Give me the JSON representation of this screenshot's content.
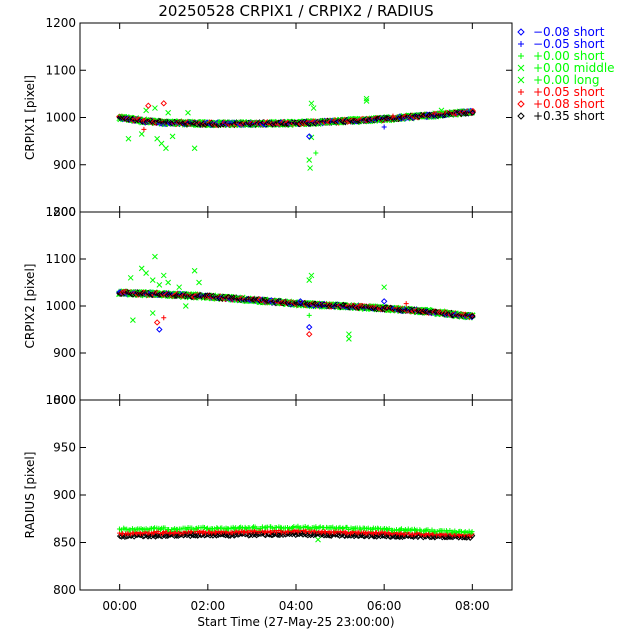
{
  "chart_data": {
    "type": "scatter",
    "title": "20250528 CRPIX1 / CRPIX2 / RADIUS",
    "xlabel": "Start Time (27-May-25 23:00:00)",
    "x_ticks": [
      "00:00",
      "02:00",
      "04:00",
      "06:00",
      "08:00"
    ],
    "x_tick_hours": [
      0,
      2,
      4,
      6,
      8
    ],
    "xlim_hours": [
      -0.9,
      8.9
    ],
    "legend": [
      {
        "label": "−0.08 short",
        "color": "#0000ff",
        "symbol": "diamond"
      },
      {
        "label": "−0.05 short",
        "color": "#0000ff",
        "symbol": "plus"
      },
      {
        "label": "+0.00 short",
        "color": "#00ff00",
        "symbol": "plus"
      },
      {
        "label": "+0.00 middle",
        "color": "#00ff00",
        "symbol": "cross"
      },
      {
        "label": "+0.00 long",
        "color": "#00ff00",
        "symbol": "cross"
      },
      {
        "label": "+0.05 short",
        "color": "#ff0000",
        "symbol": "plus"
      },
      {
        "label": "+0.08 short",
        "color": "#ff0000",
        "symbol": "diamond"
      },
      {
        "label": "+0.35 short",
        "color": "#000000",
        "symbol": "diamond"
      }
    ],
    "panels": [
      {
        "name": "crpix1",
        "ylabel": "CRPIX1 [pixel]",
        "ylim": [
          800,
          1200
        ],
        "y_ticks": [
          800,
          900,
          1000,
          1100,
          1200
        ],
        "trend": [
          [
            0,
            1000
          ],
          [
            0.5,
            993
          ],
          [
            1,
            989
          ],
          [
            2,
            987
          ],
          [
            3,
            987
          ],
          [
            4,
            988
          ],
          [
            5,
            992
          ],
          [
            6,
            997
          ],
          [
            7,
            1004
          ],
          [
            8,
            1012
          ]
        ],
        "outliers": [
          {
            "t": 0.2,
            "v": 955,
            "s": 3
          },
          {
            "t": 0.5,
            "v": 965,
            "s": 3
          },
          {
            "t": 0.6,
            "v": 1015,
            "s": 3
          },
          {
            "t": 0.8,
            "v": 1020,
            "s": 3
          },
          {
            "t": 0.85,
            "v": 955,
            "s": 3
          },
          {
            "t": 0.95,
            "v": 945,
            "s": 3
          },
          {
            "t": 1.05,
            "v": 935,
            "s": 3
          },
          {
            "t": 1.1,
            "v": 1010,
            "s": 3
          },
          {
            "t": 1.2,
            "v": 960,
            "s": 3
          },
          {
            "t": 1.55,
            "v": 1010,
            "s": 3
          },
          {
            "t": 1.7,
            "v": 935,
            "s": 3
          },
          {
            "t": 2.25,
            "v": 990,
            "s": 2
          },
          {
            "t": 4.3,
            "v": 910,
            "s": 3
          },
          {
            "t": 4.32,
            "v": 893,
            "s": 3
          },
          {
            "t": 4.35,
            "v": 1030,
            "s": 3
          },
          {
            "t": 4.4,
            "v": 1020,
            "s": 3
          },
          {
            "t": 4.35,
            "v": 958,
            "s": 3
          },
          {
            "t": 5.6,
            "v": 1040,
            "s": 3
          },
          {
            "t": 5.6,
            "v": 1035,
            "s": 3
          },
          {
            "t": 0.65,
            "v": 1025,
            "s": 6
          },
          {
            "t": 1.0,
            "v": 1030,
            "s": 6
          },
          {
            "t": 0.55,
            "v": 975,
            "s": 5
          },
          {
            "t": 4.3,
            "v": 960,
            "s": 0
          },
          {
            "t": 6.0,
            "v": 980,
            "s": 1
          },
          {
            "t": 4.45,
            "v": 925,
            "s": 2
          },
          {
            "t": 6.2,
            "v": 1003,
            "s": 5
          },
          {
            "t": 7.3,
            "v": 1015,
            "s": 3
          }
        ]
      },
      {
        "name": "crpix2",
        "ylabel": "CRPIX2 [pixel]",
        "ylim": [
          800,
          1200
        ],
        "y_ticks": [
          800,
          900,
          1000,
          1100,
          1200
        ],
        "trend": [
          [
            0,
            1028
          ],
          [
            1,
            1025
          ],
          [
            2,
            1020
          ],
          [
            3,
            1013
          ],
          [
            4,
            1005
          ],
          [
            5,
            1000
          ],
          [
            6,
            995
          ],
          [
            7,
            988
          ],
          [
            8,
            978
          ]
        ],
        "outliers": [
          {
            "t": 0.25,
            "v": 1060,
            "s": 3
          },
          {
            "t": 0.5,
            "v": 1080,
            "s": 3
          },
          {
            "t": 0.6,
            "v": 1070,
            "s": 3
          },
          {
            "t": 0.75,
            "v": 1055,
            "s": 3
          },
          {
            "t": 0.8,
            "v": 1105,
            "s": 3
          },
          {
            "t": 0.9,
            "v": 1045,
            "s": 3
          },
          {
            "t": 1.0,
            "v": 1065,
            "s": 3
          },
          {
            "t": 1.1,
            "v": 1050,
            "s": 3
          },
          {
            "t": 1.35,
            "v": 1040,
            "s": 3
          },
          {
            "t": 1.7,
            "v": 1075,
            "s": 3
          },
          {
            "t": 1.8,
            "v": 1050,
            "s": 3
          },
          {
            "t": 0.3,
            "v": 970,
            "s": 3
          },
          {
            "t": 0.75,
            "v": 985,
            "s": 3
          },
          {
            "t": 1.5,
            "v": 1000,
            "s": 3
          },
          {
            "t": 0.85,
            "v": 965,
            "s": 6
          },
          {
            "t": 0.9,
            "v": 950,
            "s": 0
          },
          {
            "t": 1.0,
            "v": 975,
            "s": 5
          },
          {
            "t": 4.1,
            "v": 1010,
            "s": 0
          },
          {
            "t": 4.3,
            "v": 1055,
            "s": 3
          },
          {
            "t": 4.35,
            "v": 1065,
            "s": 3
          },
          {
            "t": 4.3,
            "v": 980,
            "s": 2
          },
          {
            "t": 4.3,
            "v": 955,
            "s": 0
          },
          {
            "t": 4.3,
            "v": 940,
            "s": 6
          },
          {
            "t": 5.2,
            "v": 930,
            "s": 3
          },
          {
            "t": 5.2,
            "v": 940,
            "s": 3
          },
          {
            "t": 6.0,
            "v": 1040,
            "s": 3
          },
          {
            "t": 6.0,
            "v": 1010,
            "s": 0
          },
          {
            "t": 6.5,
            "v": 1005,
            "s": 5
          }
        ]
      },
      {
        "name": "radius",
        "ylabel": "RADIUS [pixel]",
        "ylim": [
          800,
          1000
        ],
        "y_ticks": [
          800,
          850,
          900,
          950,
          1000
        ],
        "series_levels": [
          {
            "symbol_index": 7,
            "trend": [
              [
                0,
                857
              ],
              [
                2,
                858
              ],
              [
                4,
                859
              ],
              [
                6,
                857
              ],
              [
                8,
                856
              ]
            ]
          },
          {
            "symbol_index": 5,
            "trend": [
              [
                0,
                860
              ],
              [
                2,
                861
              ],
              [
                4,
                862
              ],
              [
                6,
                860
              ],
              [
                8,
                858
              ]
            ]
          },
          {
            "symbol_index": 2,
            "trend": [
              [
                0,
                864
              ],
              [
                2,
                865
              ],
              [
                4,
                866
              ],
              [
                6,
                864
              ],
              [
                8,
                861
              ]
            ]
          }
        ],
        "outliers": [
          {
            "t": 4.5,
            "v": 853,
            "s": 3
          }
        ]
      }
    ]
  }
}
